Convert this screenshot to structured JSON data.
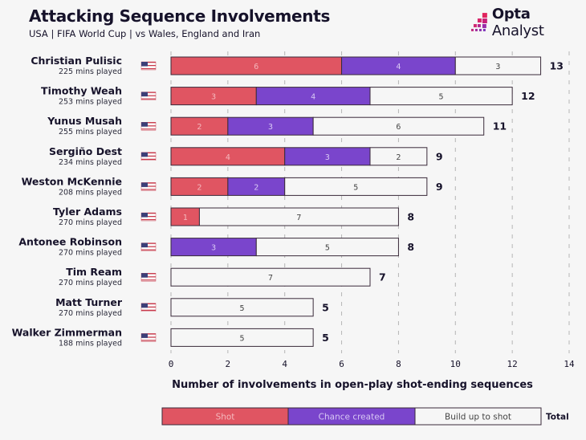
{
  "header": {
    "title": "Attacking Sequence Involvements",
    "subtitle": "USA | FIFA World Cup | vs Wales, England and Iran"
  },
  "logo": {
    "brand_bold": "Opta",
    "brand_regular": " Analyst",
    "icon": "opta-pixel-stairs-icon"
  },
  "colors": {
    "shot": "#e05562",
    "chance_created": "#7a45cc",
    "build_up": "#f6f6f6",
    "bar_border": "#444444",
    "shot_label": "#f4b8bd",
    "chance_label": "#d8c8f4",
    "build_label": "#444444",
    "grid": "#b5b5b5",
    "text": "#16122a"
  },
  "chart_data": {
    "type": "bar",
    "orientation": "horizontal",
    "stacked": true,
    "title": "Attacking Sequence Involvements",
    "subtitle": "USA | FIFA World Cup | vs Wales, England and Iran",
    "xlabel": "Number of involvements in open-play shot-ending sequences",
    "ylabel": "",
    "xlim": [
      0,
      14
    ],
    "xticks": [
      0,
      2,
      4,
      6,
      8,
      10,
      12,
      14
    ],
    "grid": true,
    "grid_style": "dashed-vertical",
    "legend_position": "bottom",
    "legend_total_label": "Total",
    "categories": [
      {
        "name": "Christian Pulisic",
        "mins": "225 mins played",
        "flag": "usa-flag-icon"
      },
      {
        "name": "Timothy Weah",
        "mins": "253 mins played",
        "flag": "usa-flag-icon"
      },
      {
        "name": "Yunus Musah",
        "mins": "255 mins played",
        "flag": "usa-flag-icon"
      },
      {
        "name": "Sergiño Dest",
        "mins": "234 mins played",
        "flag": "usa-flag-icon"
      },
      {
        "name": "Weston McKennie",
        "mins": "208 mins played",
        "flag": "usa-flag-icon"
      },
      {
        "name": "Tyler Adams",
        "mins": "270 mins played",
        "flag": "usa-flag-icon"
      },
      {
        "name": "Antonee Robinson",
        "mins": "270 mins played",
        "flag": "usa-flag-icon"
      },
      {
        "name": "Tim Ream",
        "mins": "270 mins played",
        "flag": "usa-flag-icon"
      },
      {
        "name": "Matt Turner",
        "mins": "270 mins played",
        "flag": "usa-flag-icon"
      },
      {
        "name": "Walker Zimmerman",
        "mins": "188 mins played",
        "flag": "usa-flag-icon"
      }
    ],
    "series": [
      {
        "key": "shot",
        "name": "Shot",
        "values": [
          6,
          3,
          2,
          4,
          2,
          1,
          0,
          0,
          0,
          0
        ]
      },
      {
        "key": "chance_created",
        "name": "Chance created",
        "values": [
          4,
          4,
          3,
          3,
          2,
          0,
          3,
          0,
          0,
          0
        ]
      },
      {
        "key": "build_up",
        "name": "Build up to shot",
        "values": [
          3,
          5,
          6,
          2,
          5,
          7,
          5,
          7,
          5,
          5
        ]
      }
    ],
    "totals": [
      13,
      12,
      11,
      9,
      9,
      8,
      8,
      7,
      5,
      5
    ]
  }
}
